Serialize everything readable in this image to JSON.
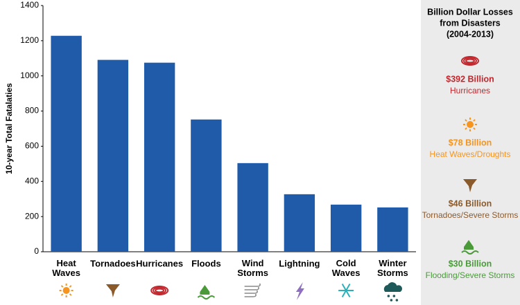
{
  "chart_data": {
    "type": "bar",
    "ylabel": "10-year Total Fatalaties",
    "categories": [
      "Heat Waves",
      "Tornadoes",
      "Hurricanes",
      "Floods",
      "Wind Storms",
      "Lightning",
      "Cold Waves",
      "Winter Storms"
    ],
    "values": [
      1228,
      1091,
      1075,
      752,
      504,
      327,
      268,
      252
    ],
    "color": "#1f5ba8",
    "ylim": [
      0,
      1400
    ],
    "yticks": [
      0,
      200,
      400,
      600,
      800,
      1000,
      1200,
      1400
    ],
    "grid": false
  },
  "side_panel": {
    "title": [
      "Billion Dollar Losses",
      "from Disasters",
      "(2004-2013)"
    ],
    "items": [
      {
        "amount": "$392 Billion",
        "label": "Hurricanes",
        "color": "#c1272d"
      },
      {
        "amount": "$78 Billion",
        "label": "Heat Waves/Droughts",
        "color": "#f7941d"
      },
      {
        "amount": "$46 Billion",
        "label": "Tornadoes/Severe Storms",
        "color": "#8b5a2b"
      },
      {
        "amount": "$30 Billion",
        "label": "Flooding/Severe Storms",
        "color": "#4a9a3a"
      }
    ]
  }
}
